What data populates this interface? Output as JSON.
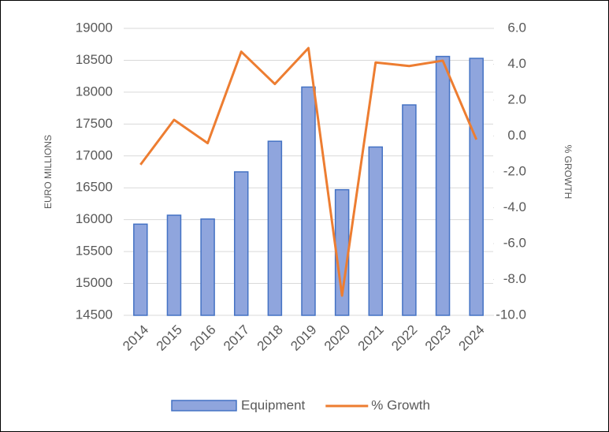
{
  "chart_data": {
    "type": "combo",
    "categories": [
      "2014",
      "2015",
      "2016",
      "2017",
      "2018",
      "2019",
      "2020",
      "2021",
      "2022",
      "2023",
      "2024"
    ],
    "series": [
      {
        "name": "Equipment",
        "type": "bar",
        "color": "#8fa5dd",
        "values": [
          15930,
          16070,
          16010,
          16750,
          17230,
          18080,
          16470,
          17140,
          17800,
          18560,
          18530
        ]
      },
      {
        "name": "% Growth",
        "type": "line",
        "axis": "y2",
        "color": "#ed7d31",
        "values": [
          -1.6,
          0.9,
          -0.4,
          4.7,
          2.9,
          4.9,
          -8.9,
          4.1,
          3.9,
          4.2,
          -0.2
        ]
      }
    ],
    "ylabel": "EURO MILLIONS",
    "y2label": "% GROWTH",
    "ylim": [
      14500,
      19000
    ],
    "yticks": [
      14500,
      15000,
      15500,
      16000,
      16500,
      17000,
      17500,
      18000,
      18500,
      19000
    ],
    "y2lim": [
      -10,
      6
    ],
    "y2ticks": [
      {
        "value": -10,
        "label": "-10.0"
      },
      {
        "value": -8,
        "label": "-8.0"
      },
      {
        "value": -6,
        "label": "-6.0"
      },
      {
        "value": -4,
        "label": "-4.0"
      },
      {
        "value": -2,
        "label": "-2.0"
      },
      {
        "value": 0,
        "label": "0.0"
      },
      {
        "value": 2,
        "label": "2.0"
      },
      {
        "value": 4,
        "label": "4.0"
      },
      {
        "value": 6,
        "label": "6.0"
      }
    ],
    "grid": true,
    "legend": "bottom"
  }
}
